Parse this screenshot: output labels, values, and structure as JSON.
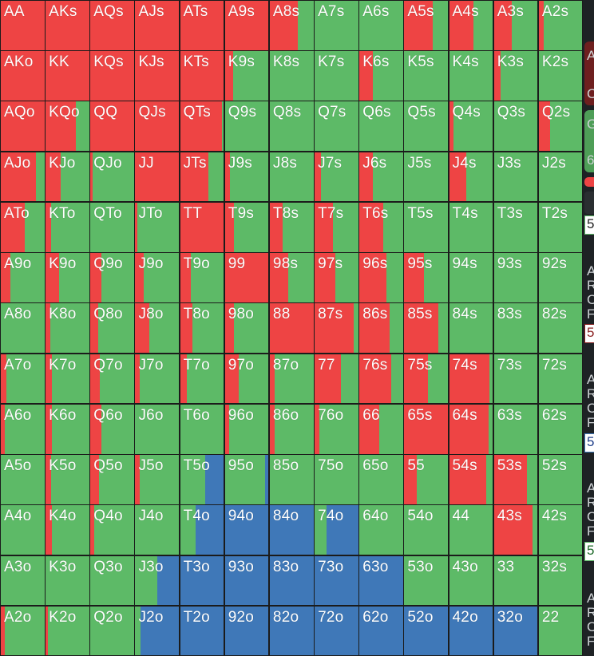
{
  "colors": {
    "raise": "#ee4444",
    "call": "#5dba67",
    "fold": "#3f78b8",
    "grid_line": "#1b1b1b",
    "text": "#ffffff"
  },
  "legend_actions": [
    "raise",
    "call",
    "fold"
  ],
  "range_matrix": {
    "ranks": [
      "A",
      "K",
      "Q",
      "J",
      "T",
      "9",
      "8",
      "7",
      "6",
      "5",
      "4",
      "3",
      "2"
    ],
    "rows": [
      [
        {
          "hand": "AA",
          "raise": 1,
          "fold": 0
        },
        {
          "hand": "AKs",
          "raise": 1,
          "fold": 0
        },
        {
          "hand": "AQs",
          "raise": 1,
          "fold": 0
        },
        {
          "hand": "AJs",
          "raise": 1,
          "fold": 0
        },
        {
          "hand": "ATs",
          "raise": 1,
          "fold": 0
        },
        {
          "hand": "A9s",
          "raise": 1,
          "fold": 0
        },
        {
          "hand": "A8s",
          "raise": 0.65,
          "fold": 0
        },
        {
          "hand": "A7s",
          "raise": 0,
          "fold": 0
        },
        {
          "hand": "A6s",
          "raise": 0,
          "fold": 0
        },
        {
          "hand": "A5s",
          "raise": 0.65,
          "fold": 0
        },
        {
          "hand": "A4s",
          "raise": 0.55,
          "fold": 0
        },
        {
          "hand": "A3s",
          "raise": 0.4,
          "fold": 0
        },
        {
          "hand": "A2s",
          "raise": 0.12,
          "fold": 0
        }
      ],
      [
        {
          "hand": "AKo",
          "raise": 1,
          "fold": 0
        },
        {
          "hand": "KK",
          "raise": 1,
          "fold": 0
        },
        {
          "hand": "KQs",
          "raise": 1,
          "fold": 0
        },
        {
          "hand": "KJs",
          "raise": 1,
          "fold": 0
        },
        {
          "hand": "KTs",
          "raise": 1,
          "fold": 0
        },
        {
          "hand": "K9s",
          "raise": 0.18,
          "fold": 0
        },
        {
          "hand": "K8s",
          "raise": 0,
          "fold": 0
        },
        {
          "hand": "K7s",
          "raise": 0,
          "fold": 0
        },
        {
          "hand": "K6s",
          "raise": 0.3,
          "fold": 0
        },
        {
          "hand": "K5s",
          "raise": 0,
          "fold": 0
        },
        {
          "hand": "K4s",
          "raise": 0,
          "fold": 0
        },
        {
          "hand": "K3s",
          "raise": 0.15,
          "fold": 0
        },
        {
          "hand": "K2s",
          "raise": 0,
          "fold": 0
        }
      ],
      [
        {
          "hand": "AQo",
          "raise": 1,
          "fold": 0
        },
        {
          "hand": "KQo",
          "raise": 0.7,
          "fold": 0
        },
        {
          "hand": "QQ",
          "raise": 1,
          "fold": 0
        },
        {
          "hand": "QJs",
          "raise": 1,
          "fold": 0
        },
        {
          "hand": "QTs",
          "raise": 0.95,
          "fold": 0
        },
        {
          "hand": "Q9s",
          "raise": 0,
          "fold": 0
        },
        {
          "hand": "Q8s",
          "raise": 0,
          "fold": 0
        },
        {
          "hand": "Q7s",
          "raise": 0,
          "fold": 0
        },
        {
          "hand": "Q6s",
          "raise": 0,
          "fold": 0
        },
        {
          "hand": "Q5s",
          "raise": 0,
          "fold": 0
        },
        {
          "hand": "Q4s",
          "raise": 0.1,
          "fold": 0
        },
        {
          "hand": "Q3s",
          "raise": 0,
          "fold": 0
        },
        {
          "hand": "Q2s",
          "raise": 0.25,
          "fold": 0
        }
      ],
      [
        {
          "hand": "AJo",
          "raise": 0.8,
          "fold": 0
        },
        {
          "hand": "KJo",
          "raise": 0.35,
          "fold": 0
        },
        {
          "hand": "QJo",
          "raise": 0.05,
          "fold": 0
        },
        {
          "hand": "JJ",
          "raise": 1,
          "fold": 0
        },
        {
          "hand": "JTs",
          "raise": 0.65,
          "fold": 0
        },
        {
          "hand": "J9s",
          "raise": 0.12,
          "fold": 0
        },
        {
          "hand": "J8s",
          "raise": 0,
          "fold": 0
        },
        {
          "hand": "J7s",
          "raise": 0.15,
          "fold": 0
        },
        {
          "hand": "J6s",
          "raise": 0.3,
          "fold": 0
        },
        {
          "hand": "J5s",
          "raise": 0,
          "fold": 0
        },
        {
          "hand": "J4s",
          "raise": 0.4,
          "fold": 0
        },
        {
          "hand": "J3s",
          "raise": 0,
          "fold": 0
        },
        {
          "hand": "J2s",
          "raise": 0,
          "fold": 0
        }
      ],
      [
        {
          "hand": "ATo",
          "raise": 0.55,
          "fold": 0
        },
        {
          "hand": "KTo",
          "raise": 0.12,
          "fold": 0
        },
        {
          "hand": "QTo",
          "raise": 0,
          "fold": 0
        },
        {
          "hand": "JTo",
          "raise": 0.05,
          "fold": 0
        },
        {
          "hand": "TT",
          "raise": 1,
          "fold": 0
        },
        {
          "hand": "T9s",
          "raise": 0.2,
          "fold": 0
        },
        {
          "hand": "T8s",
          "raise": 0.3,
          "fold": 0
        },
        {
          "hand": "T7s",
          "raise": 0.42,
          "fold": 0
        },
        {
          "hand": "T6s",
          "raise": 0.55,
          "fold": 0
        },
        {
          "hand": "T5s",
          "raise": 0,
          "fold": 0
        },
        {
          "hand": "T4s",
          "raise": 0,
          "fold": 0
        },
        {
          "hand": "T3s",
          "raise": 0,
          "fold": 0
        },
        {
          "hand": "T2s",
          "raise": 0,
          "fold": 0
        }
      ],
      [
        {
          "hand": "A9o",
          "raise": 0.22,
          "fold": 0
        },
        {
          "hand": "K9o",
          "raise": 0.3,
          "fold": 0
        },
        {
          "hand": "Q9o",
          "raise": 0.25,
          "fold": 0
        },
        {
          "hand": "J9o",
          "raise": 0.2,
          "fold": 0
        },
        {
          "hand": "T9o",
          "raise": 0.25,
          "fold": 0
        },
        {
          "hand": "99",
          "raise": 1,
          "fold": 0
        },
        {
          "hand": "98s",
          "raise": 0.42,
          "fold": 0
        },
        {
          "hand": "97s",
          "raise": 0.48,
          "fold": 0
        },
        {
          "hand": "96s",
          "raise": 0.62,
          "fold": 0
        },
        {
          "hand": "95s",
          "raise": 0.45,
          "fold": 0
        },
        {
          "hand": "94s",
          "raise": 0,
          "fold": 0
        },
        {
          "hand": "93s",
          "raise": 0,
          "fold": 0
        },
        {
          "hand": "92s",
          "raise": 0,
          "fold": 0
        }
      ],
      [
        {
          "hand": "A8o",
          "raise": 0,
          "fold": 0
        },
        {
          "hand": "K8o",
          "raise": 0.1,
          "fold": 0
        },
        {
          "hand": "Q8o",
          "raise": 0.18,
          "fold": 0
        },
        {
          "hand": "J8o",
          "raise": 0.32,
          "fold": 0
        },
        {
          "hand": "T8o",
          "raise": 0.28,
          "fold": 0
        },
        {
          "hand": "98o",
          "raise": 0.2,
          "fold": 0
        },
        {
          "hand": "88",
          "raise": 1,
          "fold": 0
        },
        {
          "hand": "87s",
          "raise": 0.9,
          "fold": 0
        },
        {
          "hand": "86s",
          "raise": 0.7,
          "fold": 0
        },
        {
          "hand": "85s",
          "raise": 0.78,
          "fold": 0
        },
        {
          "hand": "84s",
          "raise": 0,
          "fold": 0
        },
        {
          "hand": "83s",
          "raise": 0,
          "fold": 0
        },
        {
          "hand": "82s",
          "raise": 0,
          "fold": 0
        }
      ],
      [
        {
          "hand": "A7o",
          "raise": 0.12,
          "fold": 0
        },
        {
          "hand": "K7o",
          "raise": 0.15,
          "fold": 0
        },
        {
          "hand": "Q7o",
          "raise": 0.22,
          "fold": 0
        },
        {
          "hand": "J7o",
          "raise": 0.1,
          "fold": 0
        },
        {
          "hand": "T7o",
          "raise": 0.15,
          "fold": 0
        },
        {
          "hand": "97o",
          "raise": 0.32,
          "fold": 0
        },
        {
          "hand": "87o",
          "raise": 0.12,
          "fold": 0
        },
        {
          "hand": "77",
          "raise": 0.6,
          "fold": 0
        },
        {
          "hand": "76s",
          "raise": 0.72,
          "fold": 0
        },
        {
          "hand": "75s",
          "raise": 0.55,
          "fold": 0
        },
        {
          "hand": "74s",
          "raise": 0.92,
          "fold": 0
        },
        {
          "hand": "73s",
          "raise": 0,
          "fold": 0
        },
        {
          "hand": "72s",
          "raise": 0,
          "fold": 0
        }
      ],
      [
        {
          "hand": "A6o",
          "raise": 0.1,
          "fold": 0
        },
        {
          "hand": "K6o",
          "raise": 0.15,
          "fold": 0
        },
        {
          "hand": "Q6o",
          "raise": 0.25,
          "fold": 0
        },
        {
          "hand": "J6o",
          "raise": 0,
          "fold": 0
        },
        {
          "hand": "T6o",
          "raise": 0,
          "fold": 0
        },
        {
          "hand": "96o",
          "raise": 0.1,
          "fold": 0
        },
        {
          "hand": "86o",
          "raise": 0.12,
          "fold": 0
        },
        {
          "hand": "76o",
          "raise": 0.1,
          "fold": 0
        },
        {
          "hand": "66",
          "raise": 0.45,
          "fold": 0
        },
        {
          "hand": "65s",
          "raise": 1,
          "fold": 0
        },
        {
          "hand": "64s",
          "raise": 0.9,
          "fold": 0
        },
        {
          "hand": "63s",
          "raise": 0,
          "fold": 0
        },
        {
          "hand": "62s",
          "raise": 0,
          "fold": 0
        }
      ],
      [
        {
          "hand": "A5o",
          "raise": 0,
          "fold": 0
        },
        {
          "hand": "K5o",
          "raise": 0.12,
          "fold": 0
        },
        {
          "hand": "Q5o",
          "raise": 0.2,
          "fold": 0
        },
        {
          "hand": "J5o",
          "raise": 0.1,
          "fold": 0
        },
        {
          "hand": "T5o",
          "raise": 0,
          "fold": 0.42
        },
        {
          "hand": "95o",
          "raise": 0,
          "fold": 0.08
        },
        {
          "hand": "85o",
          "raise": 0,
          "fold": 0
        },
        {
          "hand": "75o",
          "raise": 0,
          "fold": 0
        },
        {
          "hand": "65o",
          "raise": 0,
          "fold": 0
        },
        {
          "hand": "55",
          "raise": 0.28,
          "fold": 0
        },
        {
          "hand": "54s",
          "raise": 0.85,
          "fold": 0
        },
        {
          "hand": "53s",
          "raise": 0.75,
          "fold": 0
        },
        {
          "hand": "52s",
          "raise": 0,
          "fold": 0
        }
      ],
      [
        {
          "hand": "A4o",
          "raise": 0,
          "fold": 0
        },
        {
          "hand": "K4o",
          "raise": 0.15,
          "fold": 0
        },
        {
          "hand": "Q4o",
          "raise": 0.08,
          "fold": 0
        },
        {
          "hand": "J4o",
          "raise": 0,
          "fold": 0
        },
        {
          "hand": "T4o",
          "raise": 0,
          "fold": 0.65
        },
        {
          "hand": "94o",
          "raise": 0,
          "fold": 1
        },
        {
          "hand": "84o",
          "raise": 0,
          "fold": 1
        },
        {
          "hand": "74o",
          "raise": 0,
          "fold": 0.72
        },
        {
          "hand": "64o",
          "raise": 0,
          "fold": 0
        },
        {
          "hand": "54o",
          "raise": 0,
          "fold": 0
        },
        {
          "hand": "44",
          "raise": 0,
          "fold": 0
        },
        {
          "hand": "43s",
          "raise": 0.88,
          "fold": 0
        },
        {
          "hand": "42s",
          "raise": 0,
          "fold": 0
        }
      ],
      [
        {
          "hand": "A3o",
          "raise": 0,
          "fold": 0
        },
        {
          "hand": "K3o",
          "raise": 0,
          "fold": 0
        },
        {
          "hand": "Q3o",
          "raise": 0,
          "fold": 0
        },
        {
          "hand": "J3o",
          "raise": 0,
          "fold": 0.5
        },
        {
          "hand": "T3o",
          "raise": 0,
          "fold": 1
        },
        {
          "hand": "93o",
          "raise": 0,
          "fold": 1
        },
        {
          "hand": "83o",
          "raise": 0,
          "fold": 1
        },
        {
          "hand": "73o",
          "raise": 0,
          "fold": 1
        },
        {
          "hand": "63o",
          "raise": 0,
          "fold": 1
        },
        {
          "hand": "53o",
          "raise": 0,
          "fold": 0
        },
        {
          "hand": "43o",
          "raise": 0,
          "fold": 0
        },
        {
          "hand": "33",
          "raise": 0,
          "fold": 0
        },
        {
          "hand": "32s",
          "raise": 0,
          "fold": 0
        }
      ],
      [
        {
          "hand": "A2o",
          "raise": 0.1,
          "fold": 0
        },
        {
          "hand": "K2o",
          "raise": 0.05,
          "fold": 0
        },
        {
          "hand": "Q2o",
          "raise": 0,
          "fold": 0
        },
        {
          "hand": "J2o",
          "raise": 0,
          "fold": 0.88
        },
        {
          "hand": "T2o",
          "raise": 0,
          "fold": 1
        },
        {
          "hand": "92o",
          "raise": 0,
          "fold": 1
        },
        {
          "hand": "82o",
          "raise": 0,
          "fold": 1
        },
        {
          "hand": "72o",
          "raise": 0,
          "fold": 1
        },
        {
          "hand": "62o",
          "raise": 0,
          "fold": 1
        },
        {
          "hand": "52o",
          "raise": 0,
          "fold": 1
        },
        {
          "hand": "42o",
          "raise": 0,
          "fold": 1
        },
        {
          "hand": "32o",
          "raise": 0,
          "fold": 1
        },
        {
          "hand": "22",
          "raise": 0,
          "fold": 0
        }
      ]
    ]
  },
  "side_panel": {
    "labels": [
      "A",
      "C",
      "G",
      "6",
      "5",
      "A",
      "R",
      "C",
      "F",
      "5",
      "A",
      "R",
      "C",
      "F",
      "5",
      "A",
      "R",
      "C",
      "F",
      "5",
      "A",
      "R",
      "C",
      "F"
    ]
  }
}
